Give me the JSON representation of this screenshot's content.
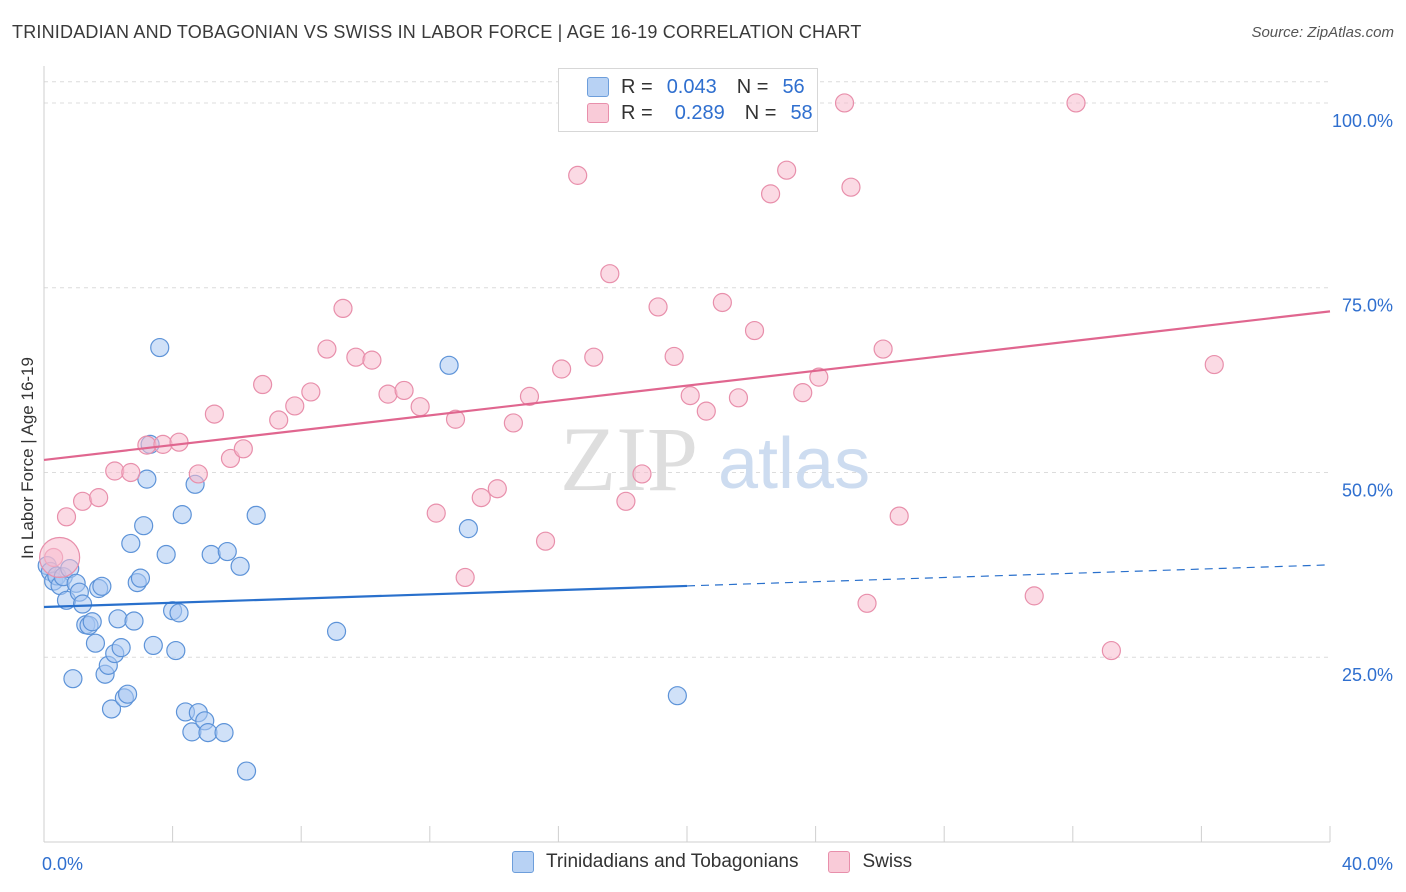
{
  "header": {
    "title": "TRINIDADIAN AND TOBAGONIAN VS SWISS IN LABOR FORCE | AGE 16-19 CORRELATION CHART",
    "source": "Source: ZipAtlas.com"
  },
  "watermark": {
    "zip": "ZIP",
    "atlas": "atlas"
  },
  "legend_top": [
    {
      "r_label": "R =",
      "r_value": "0.043",
      "n_label": "N =",
      "n_value": "56"
    },
    {
      "r_label": "R =",
      "r_value": "0.289",
      "n_label": "N =",
      "n_value": "58"
    }
  ],
  "colors": {
    "blue_fill": "#a9c8f2",
    "blue_stroke": "#5d93d8",
    "blue_line": "#2970cc",
    "pink_fill": "#f7bccd",
    "pink_stroke": "#e88fab",
    "pink_line": "#e0668f",
    "tick_label": "#2f6fcf",
    "grid": "#dcdcdc"
  },
  "chart_data": {
    "type": "scatter",
    "title": "TRINIDADIAN AND TOBAGONIAN VS SWISS IN LABOR FORCE | AGE 16-19 CORRELATION CHART",
    "xlabel": "",
    "ylabel": "In Labor Force | Age 16-19",
    "xlim": [
      0,
      40
    ],
    "ylim": [
      0,
      105
    ],
    "x_tick_labels": [
      "0.0%",
      "40.0%"
    ],
    "y_ticks": [
      25,
      50,
      75,
      100
    ],
    "y_tick_labels": [
      "25.0%",
      "50.0%",
      "75.0%",
      "100.0%"
    ],
    "legend_position": "bottom-center",
    "series": [
      {
        "name": "Trinidadians and Tobagonians",
        "color": "#a9c8f2",
        "points": [
          [
            0.1,
            37.4
          ],
          [
            0.2,
            36.6
          ],
          [
            0.3,
            35.3
          ],
          [
            0.4,
            36.0
          ],
          [
            0.5,
            34.7
          ],
          [
            0.6,
            35.9
          ],
          [
            0.7,
            32.7
          ],
          [
            0.8,
            37.0
          ],
          [
            0.9,
            22.1
          ],
          [
            1.0,
            35.0
          ],
          [
            1.1,
            33.8
          ],
          [
            1.2,
            32.2
          ],
          [
            1.3,
            29.4
          ],
          [
            1.4,
            29.3
          ],
          [
            1.5,
            29.8
          ],
          [
            1.6,
            26.9
          ],
          [
            1.7,
            34.3
          ],
          [
            1.8,
            34.6
          ],
          [
            1.9,
            22.7
          ],
          [
            2.0,
            23.9
          ],
          [
            2.1,
            18.0
          ],
          [
            2.2,
            25.5
          ],
          [
            2.3,
            30.2
          ],
          [
            2.4,
            26.3
          ],
          [
            2.5,
            19.5
          ],
          [
            2.6,
            20.0
          ],
          [
            2.7,
            40.4
          ],
          [
            2.8,
            29.9
          ],
          [
            2.9,
            35.1
          ],
          [
            3.0,
            35.7
          ],
          [
            3.1,
            42.8
          ],
          [
            3.2,
            49.1
          ],
          [
            3.3,
            53.8
          ],
          [
            3.4,
            26.6
          ],
          [
            3.6,
            66.9
          ],
          [
            3.8,
            38.9
          ],
          [
            4.0,
            31.3
          ],
          [
            4.1,
            25.9
          ],
          [
            4.2,
            31.0
          ],
          [
            4.3,
            44.3
          ],
          [
            4.4,
            17.6
          ],
          [
            4.6,
            14.9
          ],
          [
            4.7,
            48.4
          ],
          [
            4.8,
            17.5
          ],
          [
            5.0,
            16.4
          ],
          [
            5.1,
            14.8
          ],
          [
            5.2,
            38.9
          ],
          [
            5.6,
            14.8
          ],
          [
            5.7,
            39.3
          ],
          [
            6.1,
            37.3
          ],
          [
            6.3,
            9.6
          ],
          [
            6.6,
            44.2
          ],
          [
            9.1,
            28.5
          ],
          [
            12.6,
            64.5
          ],
          [
            13.2,
            42.4
          ],
          [
            19.7,
            19.8
          ]
        ]
      },
      {
        "name": "Swiss",
        "color": "#f7bccd",
        "points": [
          [
            0.3,
            38.5
          ],
          [
            0.7,
            44.0
          ],
          [
            1.2,
            46.1
          ],
          [
            1.7,
            46.6
          ],
          [
            2.2,
            50.2
          ],
          [
            2.7,
            50.0
          ],
          [
            3.2,
            53.7
          ],
          [
            3.7,
            53.8
          ],
          [
            4.2,
            54.1
          ],
          [
            4.8,
            49.8
          ],
          [
            5.3,
            57.9
          ],
          [
            5.8,
            51.9
          ],
          [
            6.2,
            53.2
          ],
          [
            6.8,
            61.9
          ],
          [
            7.3,
            57.1
          ],
          [
            7.8,
            59.0
          ],
          [
            8.3,
            60.9
          ],
          [
            8.8,
            66.7
          ],
          [
            9.3,
            72.2
          ],
          [
            9.7,
            65.6
          ],
          [
            10.2,
            65.2
          ],
          [
            10.7,
            60.6
          ],
          [
            11.2,
            61.1
          ],
          [
            11.7,
            58.9
          ],
          [
            12.2,
            44.5
          ],
          [
            12.8,
            57.2
          ],
          [
            13.1,
            35.8
          ],
          [
            13.6,
            46.6
          ],
          [
            14.1,
            47.8
          ],
          [
            14.6,
            56.7
          ],
          [
            15.1,
            60.3
          ],
          [
            15.6,
            40.7
          ],
          [
            16.1,
            64.0
          ],
          [
            16.6,
            90.2
          ],
          [
            17.1,
            65.6
          ],
          [
            17.6,
            76.9
          ],
          [
            18.1,
            46.1
          ],
          [
            18.6,
            49.8
          ],
          [
            19.1,
            72.4
          ],
          [
            19.6,
            65.7
          ],
          [
            20.1,
            60.4
          ],
          [
            20.6,
            58.3
          ],
          [
            21.1,
            73.0
          ],
          [
            21.6,
            60.1
          ],
          [
            22.1,
            69.2
          ],
          [
            22.6,
            87.7
          ],
          [
            23.1,
            90.9
          ],
          [
            23.6,
            60.8
          ],
          [
            24.1,
            62.9
          ],
          [
            24.9,
            100.0
          ],
          [
            25.1,
            88.6
          ],
          [
            25.6,
            32.3
          ],
          [
            26.1,
            66.7
          ],
          [
            26.6,
            44.1
          ],
          [
            30.8,
            33.3
          ],
          [
            32.1,
            100.0
          ],
          [
            33.2,
            25.9
          ],
          [
            36.4,
            64.6
          ]
        ]
      }
    ],
    "trendlines": [
      {
        "series": "Trinidadians and Tobagonians",
        "x": [
          0,
          40
        ],
        "y": [
          31.8,
          37.5
        ],
        "solid_until_x": 20
      },
      {
        "series": "Swiss",
        "x": [
          0,
          40
        ],
        "y": [
          51.7,
          71.8
        ]
      }
    ]
  }
}
